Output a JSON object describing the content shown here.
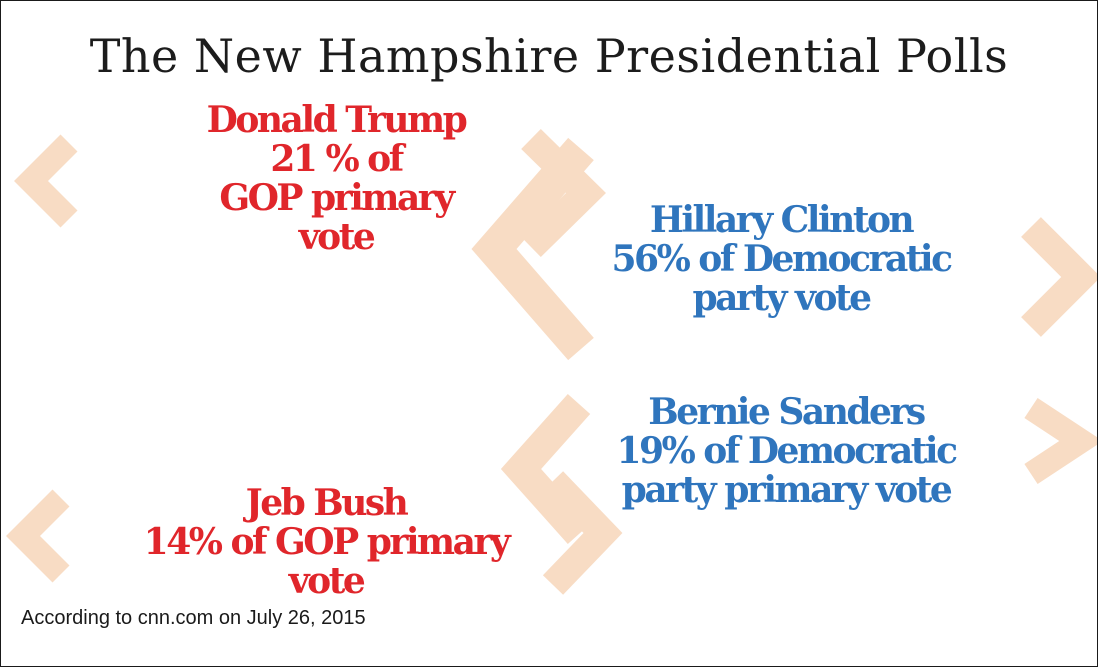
{
  "title": "The New Hampshire Presidential Polls",
  "colors": {
    "gop": "#e0262b",
    "dem": "#2f75bd",
    "chevron": "#f8dcc4"
  },
  "polls": {
    "trump": {
      "line1": "Donald Trump",
      "line2": "21 % of",
      "line3": "GOP primary",
      "line4": "vote"
    },
    "clinton": {
      "line1": "Hillary Clinton",
      "line2": "56% of Democratic",
      "line3": "party vote"
    },
    "sanders": {
      "line1": "Bernie Sanders",
      "line2": "19% of Democratic",
      "line3": "party primary vote"
    },
    "bush": {
      "line1": "Jeb Bush",
      "line2": "14% of GOP primary",
      "line3": "vote"
    }
  },
  "source": "According to cnn.com on July 26, 2015"
}
